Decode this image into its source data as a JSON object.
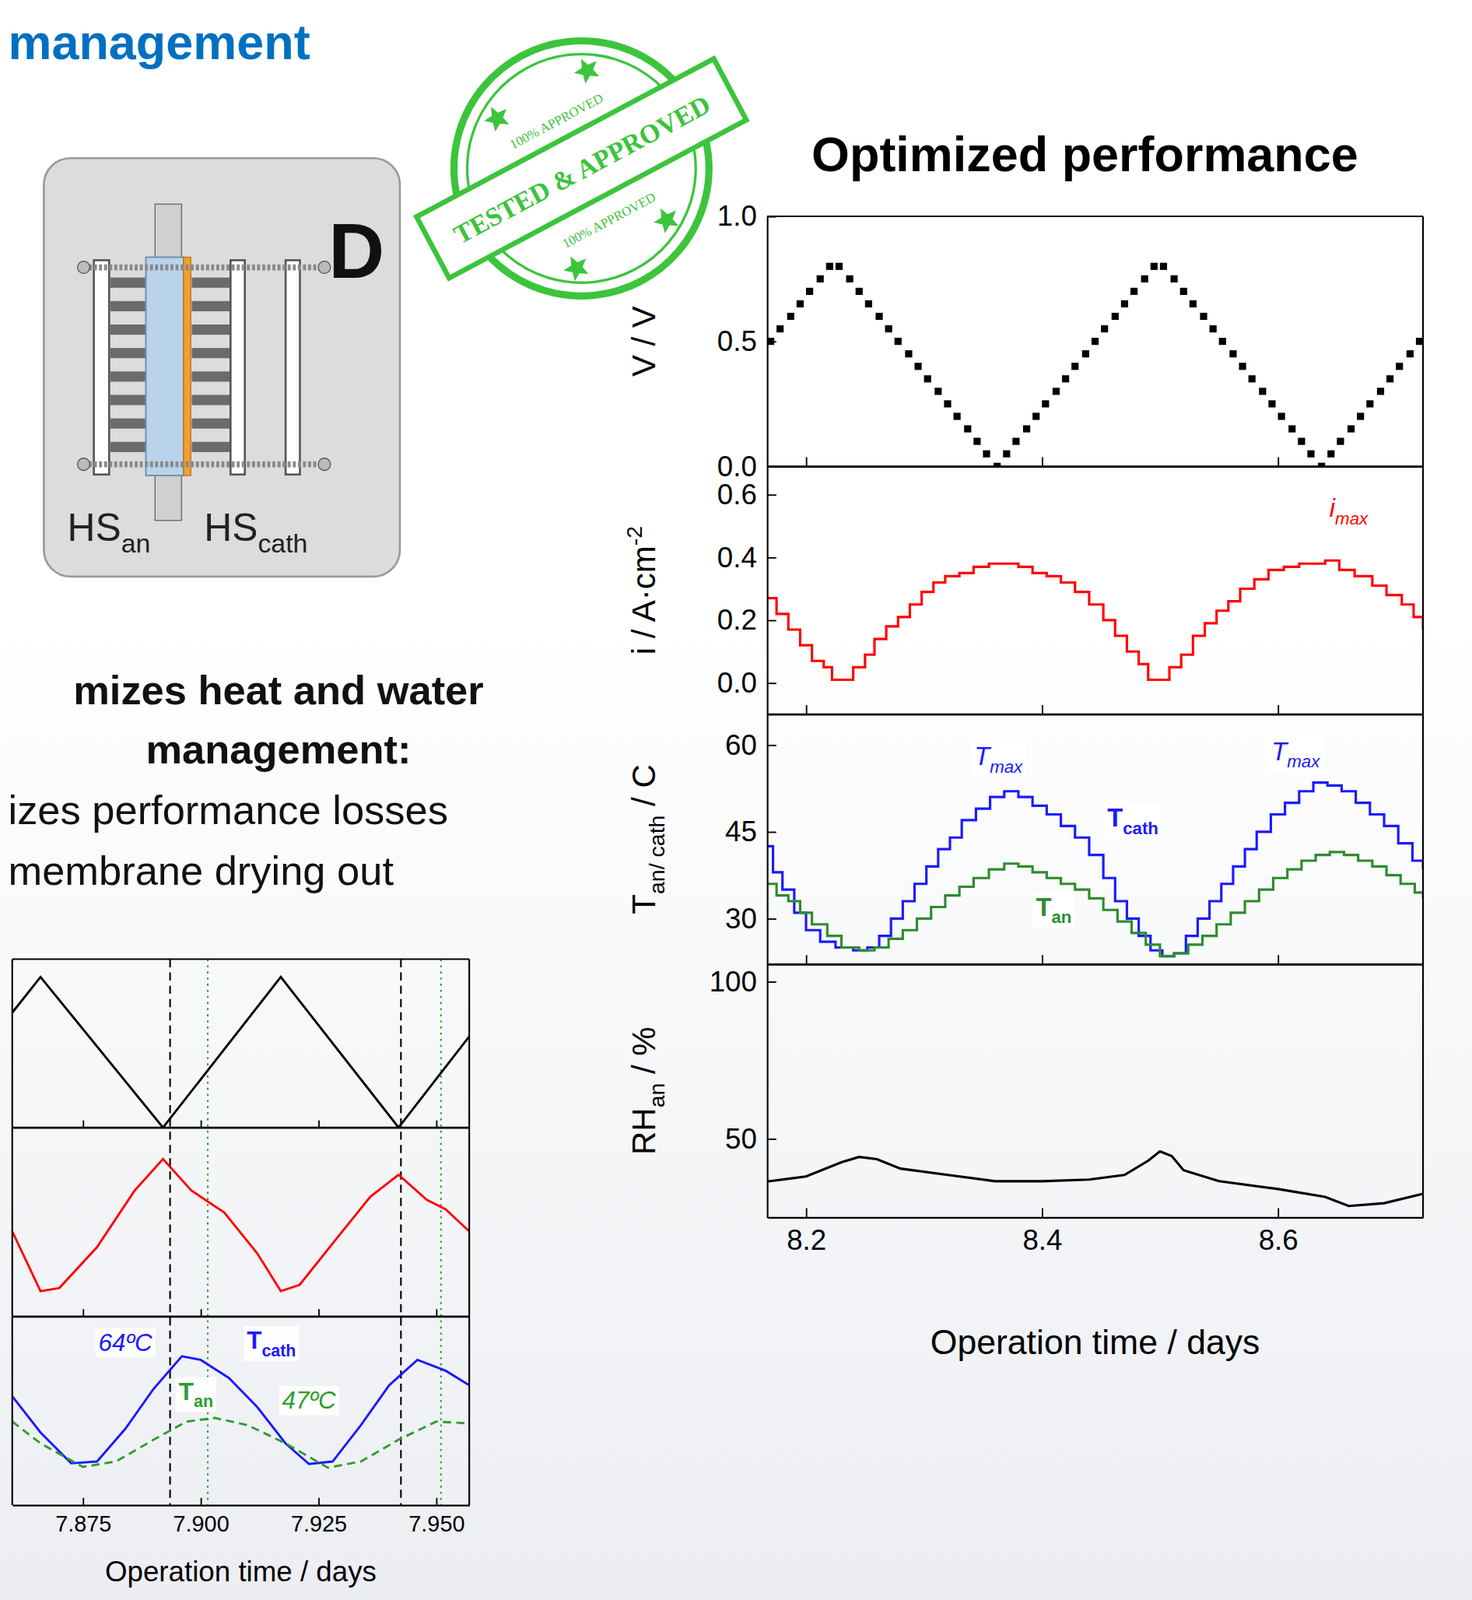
{
  "page": {
    "heading": "management",
    "diagram": {
      "letter": "D",
      "labels": [
        {
          "text": "HS",
          "sub": "an"
        },
        {
          "text": "HS",
          "sub": "cath"
        }
      ]
    },
    "stamp": {
      "text": "TESTED & APPROVED",
      "small_text": [
        "100% APPROVED",
        "100% APPROVED"
      ]
    },
    "summary": {
      "title_lines": [
        "mizes heat and water",
        "management:"
      ],
      "lines": [
        "izes performance losses",
        "membrane drying out"
      ]
    }
  },
  "chart_data": [
    {
      "type": "line",
      "xlabel": "Operation time / days",
      "xlim": [
        7.86,
        7.957
      ],
      "xticks": [
        7.875,
        {
          "value": 7.9,
          "label": "7.900"
        },
        7.925,
        {
          "value": 7.95,
          "label": "7.950"
        }
      ],
      "tick_labels": "x",
      "vlines": [
        {
          "x": 7.8935,
          "color": "#000000",
          "line_style": "dashed"
        },
        {
          "x": 7.9015,
          "color": "#2e9e2e",
          "line_style": "dotted"
        },
        {
          "x": 7.9425,
          "color": "#000000",
          "line_style": "dashed"
        },
        {
          "x": 7.951,
          "color": "#2e9e2e",
          "line_style": "dotted"
        }
      ],
      "panels": [
        {
          "ylim": [
            0,
            0.85
          ],
          "series": [
            {
              "color": "#000000",
              "line_style": "solid",
              "x": [
                7.86,
                7.866,
                7.892,
                7.917,
                7.942,
                7.957
              ],
              "values": [
                0.58,
                0.76,
                0,
                0.76,
                0,
                0.46
              ]
            }
          ]
        },
        {
          "ylim": [
            0,
            0.6
          ],
          "series": [
            {
              "color": "#ff0000",
              "line_style": "solid",
              "x": [
                7.86,
                7.866,
                7.87,
                7.878,
                7.886,
                7.892,
                7.898,
                7.905,
                7.912,
                7.917,
                7.921,
                7.929,
                7.936,
                7.942,
                7.948,
                7.952,
                7.957
              ],
              "values": [
                0.27,
                0.08,
                0.09,
                0.22,
                0.4,
                0.5,
                0.4,
                0.33,
                0.2,
                0.08,
                0.1,
                0.25,
                0.38,
                0.45,
                0.37,
                0.34,
                0.27
              ]
            }
          ]
        },
        {
          "ylim": [
            23,
            75
          ],
          "series": [
            {
              "color": "#1a1aff",
              "line_style": "solid",
              "label": {
                "text": "T",
                "sub": "cath",
                "x": 7.915,
                "y": 66
              },
              "x": [
                7.86,
                7.866,
                7.8725,
                7.878,
                7.884,
                7.89,
                7.896,
                7.9,
                7.906,
                7.912,
                7.918,
                7.923,
                7.928,
                7.934,
                7.94,
                7.946,
                7.952,
                7.957
              ],
              "values": [
                53,
                43,
                34.5,
                35,
                44,
                55,
                64,
                63,
                58,
                50,
                40,
                34.3,
                35,
                45,
                56,
                63,
                60,
                56
              ]
            },
            {
              "color": "#2e9e2e",
              "line_style": "dashed",
              "label": {
                "text": "T",
                "sub": "an",
                "x": 7.899,
                "y": 52
              },
              "x": [
                7.86,
                7.866,
                7.875,
                7.882,
                7.89,
                7.897,
                7.903,
                7.91,
                7.918,
                7.927,
                7.934,
                7.942,
                7.95,
                7.957
              ],
              "values": [
                46,
                40,
                33.5,
                35,
                41,
                46,
                47,
                45,
                40,
                33.3,
                35,
                41,
                46,
                45.5
              ]
            }
          ],
          "annotations": [
            {
              "text": "64ºC",
              "x": 7.884,
              "y": 65.5,
              "color": "#1a1aff"
            },
            {
              "text": "47ºC",
              "x": 7.923,
              "y": 49.5,
              "color": "#2e9e2e"
            }
          ]
        }
      ]
    },
    {
      "type": "line",
      "title": "Optimized performance",
      "xlabel": "Operation time / days",
      "xlim": [
        8.167,
        8.723
      ],
      "xticks": [
        8.2,
        8.4,
        8.6
      ],
      "panels": [
        {
          "ylabel": {
            "text": "V / V"
          },
          "ylim": [
            0,
            1
          ],
          "yticks": [
            {
              "value": 0,
              "label": "0.0"
            },
            0.5,
            {
              "value": 1,
              "label": "1.0"
            }
          ],
          "series": [
            {
              "type": "scatter",
              "marker": "square",
              "color": "#000000",
              "x": [
                8.17,
                8.178,
                8.187,
                8.195,
                8.203,
                8.212,
                8.22,
                8.228,
                8.237,
                8.245,
                8.253,
                8.262,
                8.27,
                8.278,
                8.287,
                8.295,
                8.303,
                8.312,
                8.32,
                8.328,
                8.337,
                8.345,
                8.353,
                8.362,
                8.37,
                8.378,
                8.387,
                8.395,
                8.403,
                8.412,
                8.42,
                8.428,
                8.437,
                8.445,
                8.453,
                8.462,
                8.47,
                8.478,
                8.487,
                8.495,
                8.503,
                8.512,
                8.52,
                8.528,
                8.537,
                8.545,
                8.553,
                8.562,
                8.57,
                8.578,
                8.587,
                8.595,
                8.603,
                8.612,
                8.62,
                8.628,
                8.637,
                8.645,
                8.653,
                8.662,
                8.67,
                8.678,
                8.687,
                8.695,
                8.703,
                8.712,
                8.72
              ],
              "values": [
                0.5,
                0.55,
                0.6,
                0.65,
                0.7,
                0.75,
                0.8,
                0.8,
                0.75,
                0.7,
                0.65,
                0.6,
                0.55,
                0.5,
                0.45,
                0.4,
                0.35,
                0.3,
                0.25,
                0.2,
                0.15,
                0.1,
                0.05,
                0,
                0.05,
                0.1,
                0.15,
                0.2,
                0.25,
                0.3,
                0.35,
                0.4,
                0.45,
                0.5,
                0.55,
                0.6,
                0.65,
                0.7,
                0.75,
                0.8,
                0.8,
                0.75,
                0.7,
                0.65,
                0.6,
                0.55,
                0.5,
                0.45,
                0.4,
                0.35,
                0.3,
                0.25,
                0.2,
                0.15,
                0.1,
                0.05,
                0,
                0.05,
                0.1,
                0.15,
                0.2,
                0.25,
                0.3,
                0.35,
                0.4,
                0.45,
                0.5
              ]
            }
          ]
        },
        {
          "ylabel": {
            "text": "i / A·cm",
            "sup": "-2"
          },
          "ylim": [
            -0.1,
            0.69
          ],
          "yticks": [
            {
              "value": 0,
              "label": "0.0"
            },
            0.2,
            0.4,
            0.6
          ],
          "series": [
            {
              "color": "#ff0000",
              "line_style": "steps",
              "x": [
                8.167,
                8.175,
                8.185,
                8.195,
                8.205,
                8.215,
                8.222,
                8.232,
                8.24,
                8.25,
                8.258,
                8.268,
                8.278,
                8.288,
                8.298,
                8.308,
                8.318,
                8.33,
                8.342,
                8.355,
                8.368,
                8.38,
                8.392,
                8.404,
                8.416,
                8.428,
                8.44,
                8.452,
                8.462,
                8.472,
                8.482,
                8.49,
                8.5,
                8.508,
                8.518,
                8.528,
                8.538,
                8.548,
                8.558,
                8.568,
                8.58,
                8.592,
                8.605,
                8.618,
                8.63,
                8.64,
                8.652,
                8.665,
                8.68,
                8.692,
                8.705,
                8.715,
                8.723
              ],
              "values": [
                0.27,
                0.22,
                0.17,
                0.12,
                0.07,
                0.05,
                0.01,
                0.01,
                0.05,
                0.09,
                0.14,
                0.18,
                0.21,
                0.25,
                0.29,
                0.32,
                0.34,
                0.35,
                0.37,
                0.38,
                0.38,
                0.37,
                0.35,
                0.34,
                0.32,
                0.29,
                0.25,
                0.2,
                0.15,
                0.1,
                0.06,
                0.01,
                0.01,
                0.05,
                0.09,
                0.15,
                0.19,
                0.23,
                0.26,
                0.3,
                0.33,
                0.36,
                0.37,
                0.38,
                0.38,
                0.39,
                0.36,
                0.34,
                0.31,
                0.28,
                0.25,
                0.21,
                0.17
              ]
            }
          ],
          "annotations": [
            {
              "text": "i",
              "sub": "max",
              "x": 8.66,
              "y": 0.53,
              "color": "#ff0000"
            }
          ]
        },
        {
          "ylabel": {
            "text": "T",
            "sub": "an/ cath",
            "after": " / C"
          },
          "ylim": [
            22.1,
            65.3
          ],
          "yticks": [
            30,
            45,
            60
          ],
          "series": [
            {
              "color": "#1a1aff",
              "line_style": "steps",
              "label": {
                "text": "T",
                "sub": "cath",
                "x": 8.477,
                "y": 45.9
              },
              "x": [
                8.167,
                8.172,
                8.18,
                8.19,
                8.2,
                8.212,
                8.225,
                8.24,
                8.252,
                8.262,
                8.272,
                8.282,
                8.292,
                8.302,
                8.312,
                8.322,
                8.332,
                8.344,
                8.356,
                8.368,
                8.38,
                8.392,
                8.404,
                8.416,
                8.428,
                8.44,
                8.452,
                8.462,
                8.472,
                8.482,
                8.492,
                8.502,
                8.512,
                8.522,
                8.532,
                8.542,
                8.552,
                8.562,
                8.572,
                8.582,
                8.594,
                8.606,
                8.618,
                8.63,
                8.642,
                8.654,
                8.666,
                8.678,
                8.69,
                8.702,
                8.714,
                8.723
              ],
              "values": [
                42.5,
                38,
                35,
                31,
                28,
                26,
                25,
                24.5,
                25,
                27,
                30,
                33,
                36,
                39,
                42,
                44,
                47,
                49,
                51,
                52,
                51,
                49.5,
                48,
                46,
                44,
                41,
                37,
                33,
                30,
                27,
                24.5,
                23.5,
                24,
                27,
                30,
                33,
                36,
                39,
                42,
                45,
                48,
                50,
                52,
                53.5,
                53,
                52,
                50,
                48,
                46,
                43,
                40,
                38.5
              ]
            },
            {
              "color": "#2e8b2e",
              "line_style": "steps",
              "label": {
                "text": "T",
                "sub": "an",
                "x": 8.41,
                "y": 30.5
              },
              "x": [
                8.167,
                8.175,
                8.185,
                8.195,
                8.205,
                8.218,
                8.23,
                8.245,
                8.258,
                8.27,
                8.282,
                8.294,
                8.306,
                8.318,
                8.33,
                8.342,
                8.355,
                8.368,
                8.38,
                8.392,
                8.404,
                8.416,
                8.428,
                8.44,
                8.452,
                8.464,
                8.476,
                8.488,
                8.5,
                8.512,
                8.524,
                8.536,
                8.548,
                8.56,
                8.572,
                8.584,
                8.596,
                8.608,
                8.62,
                8.632,
                8.644,
                8.656,
                8.668,
                8.68,
                8.692,
                8.704,
                8.716,
                8.723
              ],
              "values": [
                36,
                34,
                33,
                31,
                29,
                27,
                25,
                24.5,
                25,
                26.5,
                28,
                30,
                32,
                34,
                35.5,
                37,
                38.5,
                39.5,
                39,
                38,
                37,
                36,
                35,
                33.5,
                31.5,
                29.5,
                27.5,
                25.5,
                23.5,
                24,
                25.5,
                27,
                29,
                31,
                33,
                35,
                37,
                38.5,
                40,
                41,
                41.5,
                41,
                40,
                39,
                37.5,
                36,
                34.5,
                33.5
              ]
            }
          ],
          "annotations": [
            {
              "text": "T",
              "sub": "max",
              "x": 8.363,
              "y": 56.5,
              "color": "#1a1aff"
            },
            {
              "text": "T",
              "sub": "max",
              "x": 8.615,
              "y": 57.4,
              "color": "#1a1aff"
            }
          ]
        },
        {
          "ylabel": {
            "text": "RH",
            "sub": "an",
            "after": " / %"
          },
          "ylim": [
            25,
            105.5
          ],
          "yticks": [
            50,
            100
          ],
          "series": [
            {
              "color": "#000000",
              "line_style": "solid",
              "x": [
                8.167,
                8.2,
                8.23,
                8.245,
                8.26,
                8.28,
                8.32,
                8.36,
                8.4,
                8.44,
                8.47,
                8.49,
                8.5,
                8.51,
                8.52,
                8.55,
                8.6,
                8.64,
                8.66,
                8.69,
                8.723
              ],
              "values": [
                36.4,
                38,
                42.5,
                44.2,
                43.5,
                40.5,
                38.5,
                36.5,
                36.5,
                37,
                38.5,
                43,
                46,
                44.5,
                40,
                36.5,
                34,
                31.5,
                28.6,
                29.5,
                32.5
              ]
            }
          ]
        }
      ]
    }
  ]
}
